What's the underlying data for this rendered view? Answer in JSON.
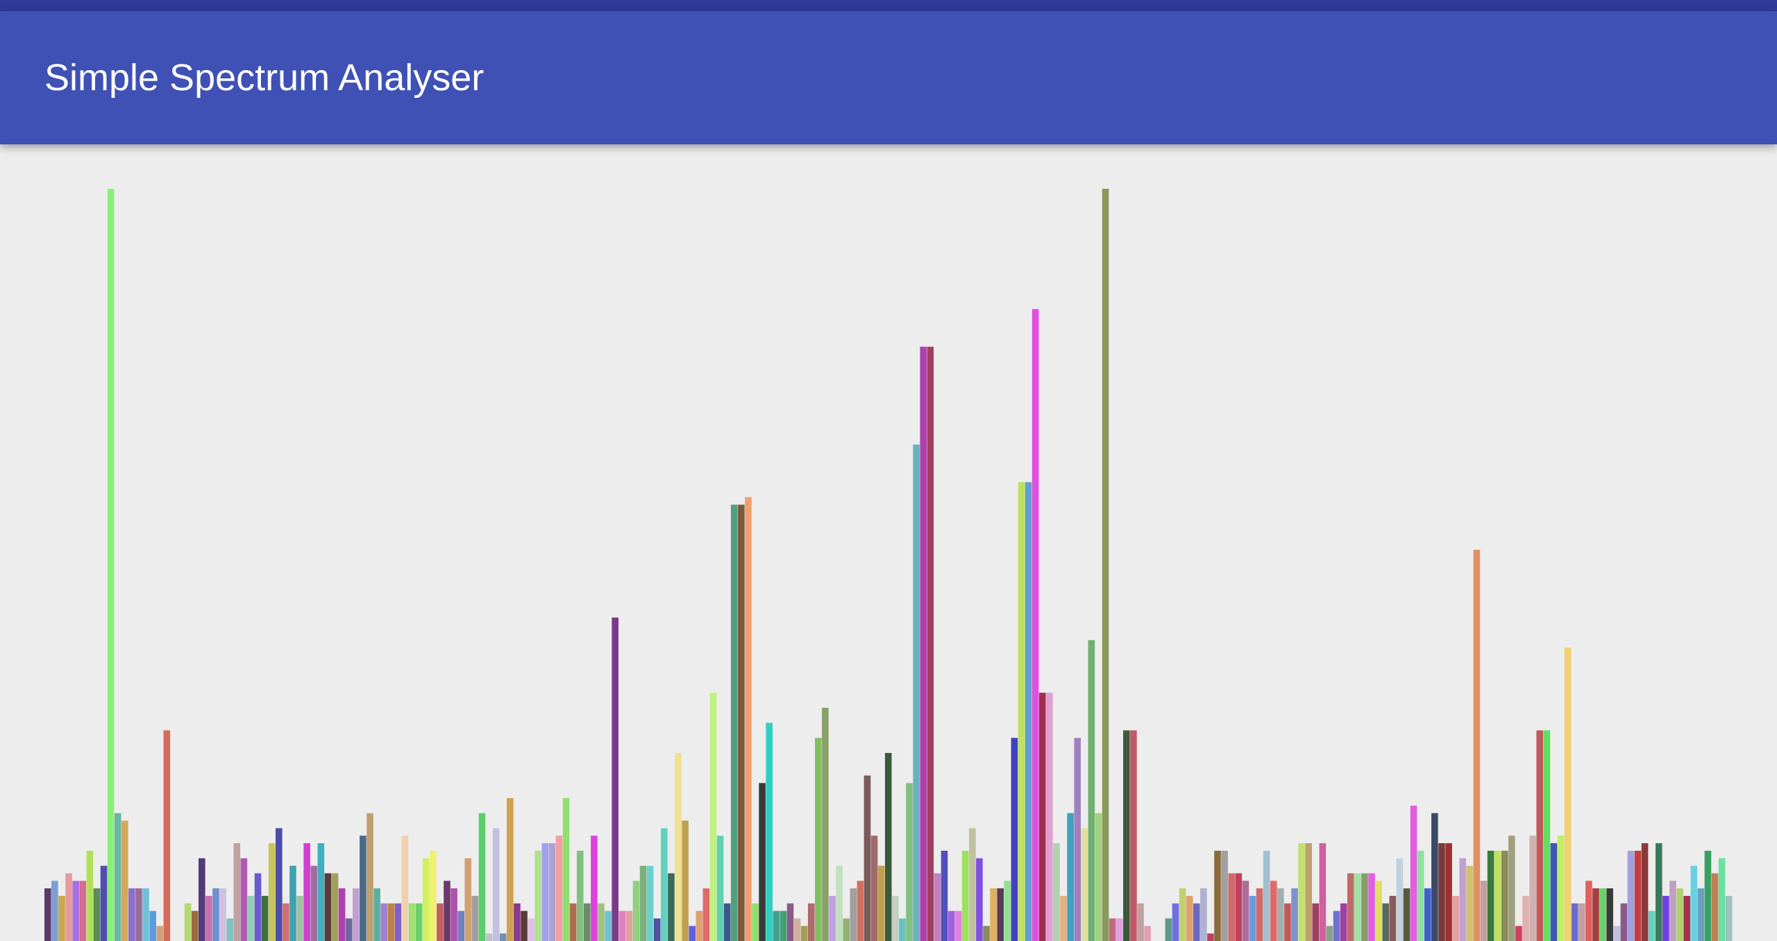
{
  "app": {
    "title": "Simple Spectrum Analyser"
  },
  "colors": {
    "status_bar": "#2f3b9b",
    "app_bar": "#3f51b5",
    "background": "#ededed",
    "title_text": "#ffffff"
  },
  "chart_data": {
    "type": "bar",
    "title": "",
    "xlabel": "",
    "ylabel": "",
    "ylim": [
      0,
      1
    ],
    "grid": false,
    "legend": "none",
    "bins": [
      {
        "value": 0.07,
        "color": "#5a3a6a"
      },
      {
        "value": 0.08,
        "color": "#7b9fd6"
      },
      {
        "value": 0.06,
        "color": "#c9a84f"
      },
      {
        "value": 0.09,
        "color": "#e79a9a"
      },
      {
        "value": 0.08,
        "color": "#a96fe1"
      },
      {
        "value": 0.08,
        "color": "#d66b8b"
      },
      {
        "value": 0.12,
        "color": "#b3e05a"
      },
      {
        "value": 0.07,
        "color": "#5b8c5a"
      },
      {
        "value": 0.1,
        "color": "#4f4fb0"
      },
      {
        "value": 1.0,
        "color": "#88f077"
      },
      {
        "value": 0.17,
        "color": "#6ab6a3"
      },
      {
        "value": 0.16,
        "color": "#d3a85a"
      },
      {
        "value": 0.07,
        "color": "#8a6fcf"
      },
      {
        "value": 0.07,
        "color": "#9e6a9a"
      },
      {
        "value": 0.07,
        "color": "#6fc2d6"
      },
      {
        "value": 0.04,
        "color": "#5b9be0"
      },
      {
        "value": 0.02,
        "color": "#d0a07a"
      },
      {
        "value": 0.28,
        "color": "#d66b5a"
      },
      {
        "value": 0.0,
        "color": "#ededed"
      },
      {
        "value": 0.0,
        "color": "#ededed"
      },
      {
        "value": 0.05,
        "color": "#b4d86f"
      },
      {
        "value": 0.04,
        "color": "#9b6a3d"
      },
      {
        "value": 0.11,
        "color": "#533a7b"
      },
      {
        "value": 0.06,
        "color": "#c96fb0"
      },
      {
        "value": 0.07,
        "color": "#6f8fd0"
      },
      {
        "value": 0.07,
        "color": "#d0c0e0"
      },
      {
        "value": 0.03,
        "color": "#7fc0c0"
      },
      {
        "value": 0.13,
        "color": "#c0a0a0"
      },
      {
        "value": 0.11,
        "color": "#b05ab0"
      },
      {
        "value": 0.06,
        "color": "#8fd0b0"
      },
      {
        "value": 0.09,
        "color": "#6a5ad0"
      },
      {
        "value": 0.06,
        "color": "#3e6f3e"
      },
      {
        "value": 0.13,
        "color": "#c8c45a"
      },
      {
        "value": 0.15,
        "color": "#4d4da8"
      },
      {
        "value": 0.05,
        "color": "#d06f6f"
      },
      {
        "value": 0.1,
        "color": "#3fa0b0"
      },
      {
        "value": 0.06,
        "color": "#a0c0a0"
      },
      {
        "value": 0.13,
        "color": "#d040d0"
      },
      {
        "value": 0.1,
        "color": "#a06fa0"
      },
      {
        "value": 0.13,
        "color": "#40b0c0"
      },
      {
        "value": 0.09,
        "color": "#5a3a3a"
      },
      {
        "value": 0.09,
        "color": "#a0a05a"
      },
      {
        "value": 0.07,
        "color": "#b040b0"
      },
      {
        "value": 0.03,
        "color": "#6a6aa0"
      },
      {
        "value": 0.07,
        "color": "#c0a0d0"
      },
      {
        "value": 0.14,
        "color": "#4a6a8a"
      },
      {
        "value": 0.17,
        "color": "#c0a070"
      },
      {
        "value": 0.07,
        "color": "#5ab0a0"
      },
      {
        "value": 0.05,
        "color": "#a080d0"
      },
      {
        "value": 0.05,
        "color": "#c08040"
      },
      {
        "value": 0.05,
        "color": "#8060c0"
      },
      {
        "value": 0.14,
        "color": "#f0d0b0"
      },
      {
        "value": 0.05,
        "color": "#a0e070"
      },
      {
        "value": 0.05,
        "color": "#6ad06a"
      },
      {
        "value": 0.11,
        "color": "#d0f060"
      },
      {
        "value": 0.12,
        "color": "#f0f070"
      },
      {
        "value": 0.05,
        "color": "#c06060"
      },
      {
        "value": 0.08,
        "color": "#6a3a6a"
      },
      {
        "value": 0.07,
        "color": "#b050b0"
      },
      {
        "value": 0.04,
        "color": "#7080c0"
      },
      {
        "value": 0.11,
        "color": "#d0a070"
      },
      {
        "value": 0.06,
        "color": "#a0a0a0"
      },
      {
        "value": 0.17,
        "color": "#5ad06a"
      },
      {
        "value": 0.01,
        "color": "#c0c0d0"
      },
      {
        "value": 0.15,
        "color": "#c0c0e0"
      },
      {
        "value": 0.01,
        "color": "#7090b0"
      },
      {
        "value": 0.19,
        "color": "#d0a050"
      },
      {
        "value": 0.05,
        "color": "#8a3a8a"
      },
      {
        "value": 0.04,
        "color": "#5a3a3a"
      },
      {
        "value": 0.03,
        "color": "#e0c0e0"
      },
      {
        "value": 0.12,
        "color": "#b0e090"
      },
      {
        "value": 0.13,
        "color": "#a0a0f0"
      },
      {
        "value": 0.13,
        "color": "#b0a0d0"
      },
      {
        "value": 0.14,
        "color": "#f0a0a0"
      },
      {
        "value": 0.19,
        "color": "#90e070"
      },
      {
        "value": 0.05,
        "color": "#b06a50"
      },
      {
        "value": 0.12,
        "color": "#80c080"
      },
      {
        "value": 0.05,
        "color": "#6a8a6a"
      },
      {
        "value": 0.14,
        "color": "#e040e0"
      },
      {
        "value": 0.05,
        "color": "#a0c080"
      },
      {
        "value": 0.04,
        "color": "#70c0d0"
      },
      {
        "value": 0.43,
        "color": "#7a3a8a"
      },
      {
        "value": 0.04,
        "color": "#e080c0"
      },
      {
        "value": 0.04,
        "color": "#e0a0a0"
      },
      {
        "value": 0.08,
        "color": "#90d080"
      },
      {
        "value": 0.1,
        "color": "#7ab07a"
      },
      {
        "value": 0.1,
        "color": "#6ad0d0"
      },
      {
        "value": 0.03,
        "color": "#5050a0"
      },
      {
        "value": 0.15,
        "color": "#60d0c0"
      },
      {
        "value": 0.09,
        "color": "#3a6a5a"
      },
      {
        "value": 0.25,
        "color": "#f0e090"
      },
      {
        "value": 0.16,
        "color": "#c0a050"
      },
      {
        "value": 0.02,
        "color": "#6060e0"
      },
      {
        "value": 0.04,
        "color": "#e0a070"
      },
      {
        "value": 0.07,
        "color": "#e06a6a"
      },
      {
        "value": 0.33,
        "color": "#c0f080"
      },
      {
        "value": 0.14,
        "color": "#60d0b0"
      },
      {
        "value": 0.05,
        "color": "#3a5a8a"
      },
      {
        "value": 0.58,
        "color": "#50a080"
      },
      {
        "value": 0.58,
        "color": "#7a5a3a"
      },
      {
        "value": 0.59,
        "color": "#f0a070"
      },
      {
        "value": 0.05,
        "color": "#90e070"
      },
      {
        "value": 0.21,
        "color": "#3a3a3a"
      },
      {
        "value": 0.29,
        "color": "#30d0c0"
      },
      {
        "value": 0.04,
        "color": "#40a090"
      },
      {
        "value": 0.04,
        "color": "#40a070"
      },
      {
        "value": 0.05,
        "color": "#8a5a8a"
      },
      {
        "value": 0.03,
        "color": "#d0b0a0"
      },
      {
        "value": 0.02,
        "color": "#a0a050"
      },
      {
        "value": 0.05,
        "color": "#b06a6a"
      },
      {
        "value": 0.27,
        "color": "#80c060"
      },
      {
        "value": 0.31,
        "color": "#8aa06a"
      },
      {
        "value": 0.06,
        "color": "#c0a0e0"
      },
      {
        "value": 0.1,
        "color": "#c0e0c0"
      },
      {
        "value": 0.03,
        "color": "#90b070"
      },
      {
        "value": 0.07,
        "color": "#a0a0a0"
      },
      {
        "value": 0.08,
        "color": "#d07060"
      },
      {
        "value": 0.22,
        "color": "#7a5a5a"
      },
      {
        "value": 0.14,
        "color": "#a06a6a"
      },
      {
        "value": 0.1,
        "color": "#c0a050"
      },
      {
        "value": 0.25,
        "color": "#3a5a3a"
      },
      {
        "value": 0.06,
        "color": "#c0d0c0"
      },
      {
        "value": 0.03,
        "color": "#6ac0c0"
      },
      {
        "value": 0.21,
        "color": "#80c080"
      },
      {
        "value": 0.66,
        "color": "#6ab0c0"
      },
      {
        "value": 0.79,
        "color": "#b040b0"
      },
      {
        "value": 0.79,
        "color": "#a04060"
      },
      {
        "value": 0.09,
        "color": "#c080c0"
      },
      {
        "value": 0.12,
        "color": "#5050c0"
      },
      {
        "value": 0.04,
        "color": "#a060e0"
      },
      {
        "value": 0.04,
        "color": "#e080e0"
      },
      {
        "value": 0.12,
        "color": "#a0e060"
      },
      {
        "value": 0.15,
        "color": "#c0c0a0"
      },
      {
        "value": 0.11,
        "color": "#8050e0"
      },
      {
        "value": 0.02,
        "color": "#8a8a5a"
      },
      {
        "value": 0.07,
        "color": "#e0b060"
      },
      {
        "value": 0.07,
        "color": "#5a3a5a"
      },
      {
        "value": 0.08,
        "color": "#90e090"
      },
      {
        "value": 0.27,
        "color": "#4040c0"
      },
      {
        "value": 0.61,
        "color": "#c0e060"
      },
      {
        "value": 0.61,
        "color": "#60a0d0"
      },
      {
        "value": 0.84,
        "color": "#e050e0"
      },
      {
        "value": 0.33,
        "color": "#a03050"
      },
      {
        "value": 0.33,
        "color": "#e0a0d0"
      },
      {
        "value": 0.13,
        "color": "#b0d0b0"
      },
      {
        "value": 0.06,
        "color": "#e0b080"
      },
      {
        "value": 0.17,
        "color": "#40a0c0"
      },
      {
        "value": 0.27,
        "color": "#a080c0"
      },
      {
        "value": 0.15,
        "color": "#e0e0a0"
      },
      {
        "value": 0.4,
        "color": "#70b070"
      },
      {
        "value": 0.17,
        "color": "#a0d080"
      },
      {
        "value": 1.0,
        "color": "#8a9a5a"
      },
      {
        "value": 0.03,
        "color": "#c06a80"
      },
      {
        "value": 0.03,
        "color": "#e0a0e0"
      },
      {
        "value": 0.28,
        "color": "#3a5a3a"
      },
      {
        "value": 0.28,
        "color": "#c05a6a"
      },
      {
        "value": 0.05,
        "color": "#c0a0a0"
      },
      {
        "value": 0.02,
        "color": "#e0a0b0"
      },
      {
        "value": 0.0,
        "color": "#ededed"
      },
      {
        "value": 0.0,
        "color": "#ededed"
      },
      {
        "value": 0.03,
        "color": "#5a9a8a"
      },
      {
        "value": 0.05,
        "color": "#7070e0"
      },
      {
        "value": 0.07,
        "color": "#c0d070"
      },
      {
        "value": 0.06,
        "color": "#e0a070"
      },
      {
        "value": 0.05,
        "color": "#6a6ac0"
      },
      {
        "value": 0.07,
        "color": "#b0b0d0"
      },
      {
        "value": 0.01,
        "color": "#c04060"
      },
      {
        "value": 0.12,
        "color": "#8a6a3a"
      },
      {
        "value": 0.12,
        "color": "#a0a0a0"
      },
      {
        "value": 0.09,
        "color": "#d06a6a"
      },
      {
        "value": 0.09,
        "color": "#c04060"
      },
      {
        "value": 0.08,
        "color": "#b06a9a"
      },
      {
        "value": 0.06,
        "color": "#6a9ae0"
      },
      {
        "value": 0.07,
        "color": "#d06a6a"
      },
      {
        "value": 0.12,
        "color": "#a0c0d0"
      },
      {
        "value": 0.08,
        "color": "#e06a6a"
      },
      {
        "value": 0.07,
        "color": "#a0b0b0"
      },
      {
        "value": 0.05,
        "color": "#c05a5a"
      },
      {
        "value": 0.07,
        "color": "#8090d0"
      },
      {
        "value": 0.13,
        "color": "#c0e070"
      },
      {
        "value": 0.13,
        "color": "#c0a070"
      },
      {
        "value": 0.05,
        "color": "#a04060"
      },
      {
        "value": 0.13,
        "color": "#d060a0"
      },
      {
        "value": 0.02,
        "color": "#8aa08a"
      },
      {
        "value": 0.04,
        "color": "#7070d0"
      },
      {
        "value": 0.05,
        "color": "#a040a0"
      },
      {
        "value": 0.09,
        "color": "#c06a6a"
      },
      {
        "value": 0.09,
        "color": "#a0e0a0"
      },
      {
        "value": 0.09,
        "color": "#8a9a6a"
      },
      {
        "value": 0.09,
        "color": "#e060e0"
      },
      {
        "value": 0.08,
        "color": "#e0e060"
      },
      {
        "value": 0.05,
        "color": "#5a6a5a"
      },
      {
        "value": 0.06,
        "color": "#8a5a5a"
      },
      {
        "value": 0.11,
        "color": "#c0d0e0"
      },
      {
        "value": 0.07,
        "color": "#5a5a3a"
      },
      {
        "value": 0.18,
        "color": "#e060e0"
      },
      {
        "value": 0.12,
        "color": "#90e0a0"
      },
      {
        "value": 0.07,
        "color": "#4060d0"
      },
      {
        "value": 0.17,
        "color": "#3a4a6a"
      },
      {
        "value": 0.13,
        "color": "#7a3a3a"
      },
      {
        "value": 0.13,
        "color": "#a03030"
      },
      {
        "value": 0.06,
        "color": "#e0a0a0"
      },
      {
        "value": 0.11,
        "color": "#c0a0d0"
      },
      {
        "value": 0.1,
        "color": "#d0c070"
      },
      {
        "value": 0.52,
        "color": "#e09060"
      },
      {
        "value": 0.08,
        "color": "#c0a0a0"
      },
      {
        "value": 0.12,
        "color": "#3a7a3a"
      },
      {
        "value": 0.12,
        "color": "#c0e060"
      },
      {
        "value": 0.12,
        "color": "#8a8a5a"
      },
      {
        "value": 0.14,
        "color": "#a0a080"
      },
      {
        "value": 0.02,
        "color": "#d04060"
      },
      {
        "value": 0.06,
        "color": "#e0b0b0"
      },
      {
        "value": 0.14,
        "color": "#d0b0b0"
      },
      {
        "value": 0.28,
        "color": "#c05a5a"
      },
      {
        "value": 0.28,
        "color": "#60e060"
      },
      {
        "value": 0.13,
        "color": "#3a5ab0"
      },
      {
        "value": 0.14,
        "color": "#c0f060"
      },
      {
        "value": 0.39,
        "color": "#f0d070"
      },
      {
        "value": 0.05,
        "color": "#6a6ad0"
      },
      {
        "value": 0.05,
        "color": "#c0a0a0"
      },
      {
        "value": 0.08,
        "color": "#e06060"
      },
      {
        "value": 0.07,
        "color": "#a04040"
      },
      {
        "value": 0.07,
        "color": "#6ad06a"
      },
      {
        "value": 0.07,
        "color": "#3a3a3a"
      },
      {
        "value": 0.02,
        "color": "#c0c0e0"
      },
      {
        "value": 0.05,
        "color": "#8a5a8a"
      },
      {
        "value": 0.12,
        "color": "#a0a0e0"
      },
      {
        "value": 0.12,
        "color": "#c04040"
      },
      {
        "value": 0.13,
        "color": "#8a3a3a"
      },
      {
        "value": 0.04,
        "color": "#6ad0c0"
      },
      {
        "value": 0.13,
        "color": "#3a7a5a"
      },
      {
        "value": 0.06,
        "color": "#7040e0"
      },
      {
        "value": 0.08,
        "color": "#c0a0c0"
      },
      {
        "value": 0.07,
        "color": "#b0d070"
      },
      {
        "value": 0.06,
        "color": "#a03050"
      },
      {
        "value": 0.1,
        "color": "#6ad0e0"
      },
      {
        "value": 0.07,
        "color": "#6aa0c0"
      },
      {
        "value": 0.12,
        "color": "#3aa060"
      },
      {
        "value": 0.09,
        "color": "#c08050"
      },
      {
        "value": 0.11,
        "color": "#6ae0a0"
      },
      {
        "value": 0.06,
        "color": "#a0c0c0"
      }
    ]
  }
}
